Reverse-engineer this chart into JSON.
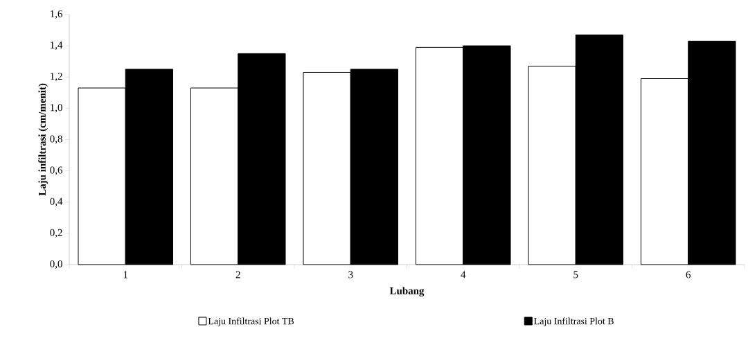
{
  "chart_data": {
    "type": "bar",
    "xlabel": "Lubang",
    "ylabel": "Laju infiltrasi (cm/menit)",
    "categories": [
      "1",
      "2",
      "3",
      "4",
      "5",
      "6"
    ],
    "series": [
      {
        "name": "Laju Infiltrasi Plot TB",
        "color": "#ffffff",
        "values": [
          1.13,
          1.13,
          1.23,
          1.39,
          1.27,
          1.19
        ]
      },
      {
        "name": "Laju Infiltrasi Plot B",
        "color": "#000000",
        "values": [
          1.25,
          1.35,
          1.25,
          1.4,
          1.47,
          1.43
        ]
      }
    ],
    "ylim": [
      0,
      1.6
    ],
    "yticks": [
      {
        "value": 0,
        "label": "0,0"
      },
      {
        "value": 0.2,
        "label": "0,2"
      },
      {
        "value": 0.4,
        "label": "0,4"
      },
      {
        "value": 0.6,
        "label": "0,6"
      },
      {
        "value": 0.8,
        "label": "0,8"
      },
      {
        "value": 1.0,
        "label": "1,0"
      },
      {
        "value": 1.2,
        "label": "1,2"
      },
      {
        "value": 1.4,
        "label": "1,4"
      },
      {
        "value": 1.6,
        "label": "1,6"
      }
    ],
    "legend": "bottom",
    "grid": false
  }
}
